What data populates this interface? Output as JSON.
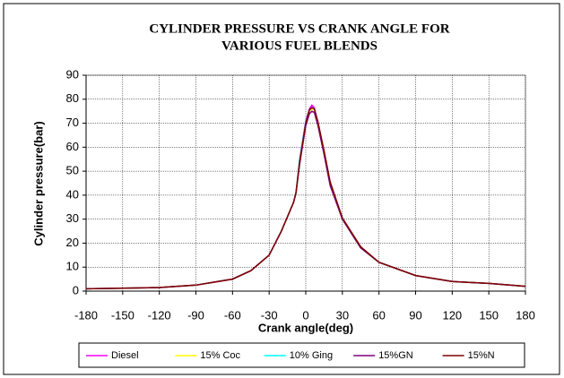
{
  "chart_data": {
    "type": "line",
    "title": [
      "CYLINDER PRESSURE VS CRANK ANGLE FOR",
      "VARIOUS FUEL BLENDS"
    ],
    "x_label": "Crank angle(deg)",
    "y_label": "Cylinder pressure(bar)",
    "x": [
      -180,
      -150,
      -120,
      -90,
      -60,
      -45,
      -30,
      -20,
      -15,
      -10,
      -8,
      -5,
      0,
      3,
      5,
      7,
      10,
      15,
      20,
      30,
      45,
      60,
      90,
      120,
      150,
      180
    ],
    "series": [
      {
        "name": "Diesel",
        "color": "#ff00ff",
        "values": [
          1,
          1.2,
          1.5,
          2.5,
          5,
          8.5,
          15,
          25,
          31,
          37,
          41,
          55,
          71,
          76,
          77.5,
          76.5,
          70,
          58,
          45,
          30,
          18,
          12,
          6.5,
          4,
          3.2,
          2
        ]
      },
      {
        "name": "15% Coc",
        "color": "#ffff00",
        "values": [
          1,
          1.2,
          1.5,
          2.5,
          5,
          8.5,
          15,
          25,
          31,
          37,
          41,
          54,
          70,
          75,
          76,
          75.5,
          70,
          58,
          45,
          30,
          18,
          12,
          6.5,
          4,
          3.2,
          2
        ]
      },
      {
        "name": "10% Ging",
        "color": "#00ffff",
        "values": [
          1,
          1.2,
          1.5,
          2.5,
          5,
          8.5,
          15,
          25,
          31,
          37,
          41,
          55,
          70.5,
          75.5,
          76.5,
          76,
          70,
          58,
          45,
          30,
          18,
          12,
          6.5,
          4,
          3.2,
          2
        ]
      },
      {
        "name": "15%GN",
        "color": "#800080",
        "values": [
          1,
          1.2,
          1.5,
          2.5,
          5,
          8.5,
          15,
          25,
          31,
          37,
          41,
          53,
          69,
          74,
          75,
          74.5,
          69,
          57,
          44,
          30,
          18,
          12,
          6.5,
          4,
          3.2,
          2
        ]
      },
      {
        "name": "15%N",
        "color": "#800000",
        "values": [
          1,
          1.2,
          1.5,
          2.5,
          5,
          8.5,
          15,
          25,
          31,
          37,
          41,
          54,
          70,
          75.5,
          76.5,
          76,
          70.5,
          58.5,
          45.5,
          30.5,
          18.5,
          12,
          6.5,
          4,
          3.2,
          2
        ]
      }
    ],
    "xlim": [
      -180,
      180
    ],
    "xticks": [
      -180,
      -150,
      -120,
      -90,
      -60,
      -30,
      0,
      30,
      60,
      90,
      120,
      150,
      180
    ],
    "ylim": [
      0,
      90
    ],
    "yticks": [
      0,
      10,
      20,
      30,
      40,
      50,
      60,
      70,
      80,
      90
    ],
    "grid": true,
    "legend": "bottom"
  }
}
